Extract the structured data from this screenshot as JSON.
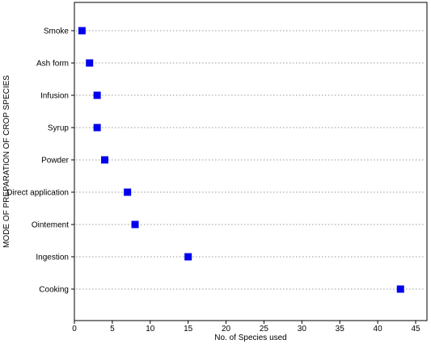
{
  "chart_data": {
    "type": "scatter",
    "title": "",
    "xlabel": "No. of Species used",
    "ylabel": "MODE OF PREPARATION OF CROP SPECIES",
    "xlim": [
      0,
      47
    ],
    "xticks": [
      0,
      5,
      10,
      15,
      20,
      25,
      30,
      35,
      40,
      45
    ],
    "grid": "dotted horizontal guide lines per category",
    "marker_color": "#0000ee",
    "categories": [
      "Smoke",
      "Ash form",
      "Infusion",
      "Syrup",
      "Powder",
      "Direct application",
      "Ointement",
      "Ingestion",
      "Cooking"
    ],
    "values": [
      1,
      2,
      3,
      3,
      4,
      7,
      8,
      15,
      43
    ]
  }
}
